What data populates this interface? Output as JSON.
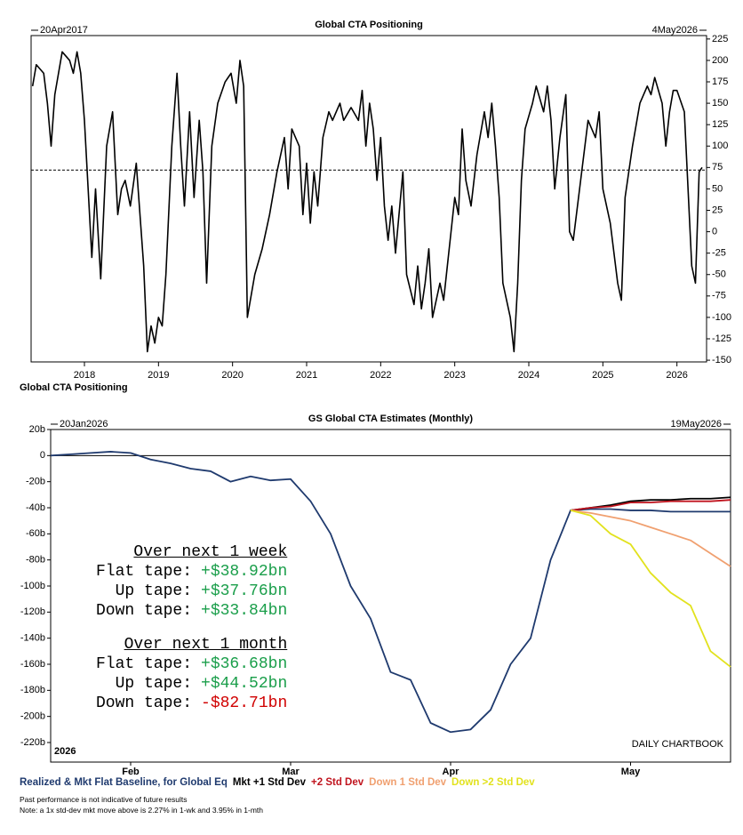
{
  "chart_data": [
    {
      "type": "line",
      "title": "Global CTA Positioning",
      "start_label": "20Apr2017",
      "end_label": "4May2026",
      "footer_label": "Global CTA Positioning",
      "x": [
        2017.3,
        2017.35,
        2017.45,
        2017.5,
        2017.55,
        2017.6,
        2017.7,
        2017.8,
        2017.85,
        2017.9,
        2017.95,
        2018.0,
        2018.05,
        2018.1,
        2018.15,
        2018.22,
        2018.3,
        2018.38,
        2018.45,
        2018.5,
        2018.55,
        2018.62,
        2018.7,
        2018.8,
        2018.85,
        2018.9,
        2018.95,
        2019.0,
        2019.05,
        2019.1,
        2019.18,
        2019.25,
        2019.3,
        2019.35,
        2019.42,
        2019.48,
        2019.55,
        2019.6,
        2019.65,
        2019.72,
        2019.8,
        2019.9,
        2019.98,
        2020.05,
        2020.1,
        2020.15,
        2020.2,
        2020.3,
        2020.4,
        2020.5,
        2020.6,
        2020.7,
        2020.75,
        2020.8,
        2020.9,
        2020.95,
        2021.0,
        2021.05,
        2021.1,
        2021.15,
        2021.22,
        2021.3,
        2021.35,
        2021.45,
        2021.5,
        2021.6,
        2021.7,
        2021.75,
        2021.8,
        2021.85,
        2021.9,
        2021.95,
        2022.0,
        2022.05,
        2022.1,
        2022.15,
        2022.2,
        2022.3,
        2022.35,
        2022.45,
        2022.5,
        2022.55,
        2022.6,
        2022.65,
        2022.7,
        2022.8,
        2022.85,
        2022.9,
        2023.0,
        2023.05,
        2023.1,
        2023.15,
        2023.22,
        2023.3,
        2023.4,
        2023.45,
        2023.5,
        2023.55,
        2023.6,
        2023.65,
        2023.75,
        2023.8,
        2023.85,
        2023.9,
        2023.95,
        2024.05,
        2024.1,
        2024.2,
        2024.25,
        2024.3,
        2024.35,
        2024.42,
        2024.5,
        2024.55,
        2024.6,
        2024.7,
        2024.8,
        2024.9,
        2024.95,
        2025.0,
        2025.1,
        2025.2,
        2025.25,
        2025.3,
        2025.4,
        2025.5,
        2025.6,
        2025.65,
        2025.7,
        2025.8,
        2025.85,
        2025.9,
        2025.95,
        2026.0,
        2026.1,
        2026.15,
        2026.2,
        2026.25,
        2026.3,
        2026.34
      ],
      "series": [
        {
          "color": "#000000",
          "values": [
            170,
            195,
            185,
            150,
            100,
            160,
            210,
            200,
            185,
            210,
            185,
            130,
            50,
            -30,
            50,
            -55,
            100,
            140,
            20,
            50,
            60,
            30,
            80,
            -40,
            -140,
            -110,
            -130,
            -100,
            -110,
            -50,
            100,
            185,
            100,
            30,
            140,
            40,
            130,
            70,
            -60,
            100,
            150,
            175,
            185,
            150,
            200,
            170,
            -100,
            -50,
            -20,
            20,
            70,
            110,
            50,
            120,
            100,
            20,
            80,
            10,
            70,
            30,
            110,
            140,
            130,
            150,
            130,
            145,
            130,
            165,
            100,
            150,
            120,
            60,
            110,
            30,
            -10,
            30,
            -25,
            70,
            -50,
            -85,
            -40,
            -90,
            -60,
            -20,
            -100,
            -60,
            -80,
            -40,
            40,
            20,
            120,
            60,
            30,
            90,
            140,
            110,
            150,
            100,
            40,
            -60,
            -100,
            -140,
            -60,
            60,
            120,
            150,
            170,
            140,
            170,
            130,
            50,
            110,
            160,
            0,
            -10,
            60,
            130,
            110,
            140,
            50,
            10,
            -60,
            -80,
            40,
            100,
            150,
            170,
            160,
            180,
            150,
            100,
            140,
            165,
            165,
            140,
            50,
            -40,
            -60,
            70,
            75
          ]
        }
      ],
      "hline": 72,
      "xlim": [
        2017.28,
        2026.4
      ],
      "xticks": [
        2018,
        2019,
        2020,
        2021,
        2022,
        2023,
        2024,
        2025,
        2026
      ],
      "ylim": [
        -152,
        229
      ],
      "yticks": [
        225,
        200,
        175,
        150,
        125,
        100,
        75,
        50,
        25,
        0,
        -25,
        -50,
        -75,
        -100,
        -125,
        -150
      ],
      "y_axis_side": "right"
    },
    {
      "type": "line",
      "title": "GS Global CTA Estimates (Monthly)",
      "start_label": "20Jan2026",
      "end_label": "19May2026",
      "year_label": "2026",
      "watermark": "DAILY CHARTBOOK",
      "categories": [
        null,
        null,
        null,
        null,
        "Feb",
        null,
        null,
        null,
        null,
        null,
        null,
        null,
        "Mar",
        null,
        null,
        null,
        null,
        null,
        null,
        null,
        "Apr",
        null,
        null,
        null,
        null,
        null,
        null,
        null,
        null,
        "May",
        null,
        null,
        null,
        null,
        null
      ],
      "series": [
        {
          "name": "Realized & Mkt Flat Baseline, for Global Eq",
          "color": "#1f3a6e",
          "values": [
            0,
            1,
            2,
            3,
            2,
            -3,
            -6,
            -10,
            -12,
            -20,
            -16,
            -19,
            -18,
            -35,
            -60,
            -100,
            -125,
            -166,
            -172,
            -205,
            -212,
            -210,
            -195,
            -160,
            -140,
            -80,
            -42,
            -41,
            -41,
            -42,
            -42,
            -43,
            -43,
            -43,
            -43
          ]
        },
        {
          "name": "Mkt +1 Std Dev",
          "color": "#000000",
          "values": [
            null,
            null,
            null,
            null,
            null,
            null,
            null,
            null,
            null,
            null,
            null,
            null,
            null,
            null,
            null,
            null,
            null,
            null,
            null,
            null,
            null,
            null,
            null,
            null,
            null,
            null,
            -42,
            -40,
            -38,
            -35,
            -34,
            -34,
            -33,
            -33,
            -32
          ]
        },
        {
          "name": "+2 Std Dev",
          "color": "#c0141e",
          "values": [
            null,
            null,
            null,
            null,
            null,
            null,
            null,
            null,
            null,
            null,
            null,
            null,
            null,
            null,
            null,
            null,
            null,
            null,
            null,
            null,
            null,
            null,
            null,
            null,
            null,
            null,
            -42,
            -40,
            -39,
            -36,
            -36,
            -35,
            -35,
            -35,
            -34
          ]
        },
        {
          "name": "Down 1 Std Dev",
          "color": "#f0a070",
          "values": [
            null,
            null,
            null,
            null,
            null,
            null,
            null,
            null,
            null,
            null,
            null,
            null,
            null,
            null,
            null,
            null,
            null,
            null,
            null,
            null,
            null,
            null,
            null,
            null,
            null,
            null,
            -42,
            -44,
            -47,
            -50,
            -55,
            -60,
            -65,
            -75,
            -85
          ]
        },
        {
          "name": "Down >2 Std Dev",
          "color": "#e2e21e",
          "values": [
            null,
            null,
            null,
            null,
            null,
            null,
            null,
            null,
            null,
            null,
            null,
            null,
            null,
            null,
            null,
            null,
            null,
            null,
            null,
            null,
            null,
            null,
            null,
            null,
            null,
            null,
            -42,
            -46,
            -60,
            -68,
            -90,
            -105,
            -115,
            -150,
            -162
          ]
        }
      ],
      "ylim": [
        -235,
        20
      ],
      "yticks": [
        {
          "value": 20,
          "label": "20b"
        },
        0,
        {
          "value": -20,
          "label": "-20b"
        },
        {
          "value": -40,
          "label": "-40b"
        },
        {
          "value": -60,
          "label": "-60b"
        },
        {
          "value": -80,
          "label": "-80b"
        },
        {
          "value": -100,
          "label": "-100b"
        },
        {
          "value": -120,
          "label": "-120b"
        },
        {
          "value": -140,
          "label": "-140b"
        },
        {
          "value": -160,
          "label": "-160b"
        },
        {
          "value": -180,
          "label": "-180b"
        },
        {
          "value": -200,
          "label": "-200b"
        },
        {
          "value": -220,
          "label": "-220b"
        }
      ],
      "zero_line": true,
      "annotations": [
        {
          "heading": "Over next 1 week",
          "rows": [
            {
              "label": "Flat tape:",
              "value": "+$38.92bn",
              "color": "#1a9e4a"
            },
            {
              "label": "Up tape:",
              "value": "+$37.76bn",
              "color": "#1a9e4a"
            },
            {
              "label": "Down tape:",
              "value": "+$33.84bn",
              "color": "#1a9e4a"
            }
          ]
        },
        {
          "heading": "Over next 1 month",
          "rows": [
            {
              "label": "Flat tape:",
              "value": "+$36.68bn",
              "color": "#1a9e4a"
            },
            {
              "label": "Up tape:",
              "value": "+$44.52bn",
              "color": "#1a9e4a"
            },
            {
              "label": "Down tape:",
              "value": "-$82.71bn",
              "color": "#d00000"
            }
          ]
        }
      ],
      "notes": [
        "Past performance is not indicative of future results",
        "Note: a 1x std-dev mkt move above is 2.27% in 1-wk and 3.95% in 1-mth"
      ]
    }
  ]
}
